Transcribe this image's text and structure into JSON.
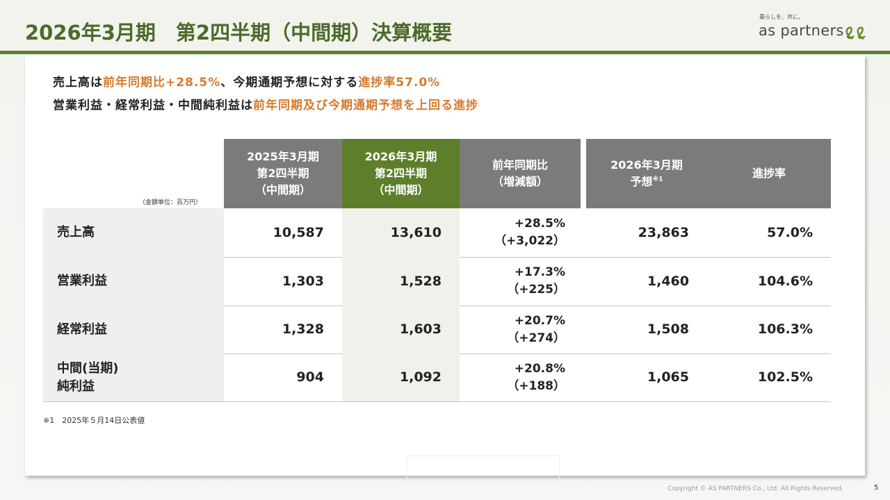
{
  "header": {
    "title": "2026年3月期　第2四半期（中間期）決算概要",
    "tagline": "暮らしを、共に。",
    "logo": "as partners"
  },
  "summary": [
    [
      {
        "text": "売上高は",
        "highlight": false
      },
      {
        "text": "前年同期比+28.5%",
        "highlight": true
      },
      {
        "text": "、今期通期予想に対する",
        "highlight": false
      },
      {
        "text": "進捗率57.0%",
        "highlight": true
      }
    ],
    [
      {
        "text": "営業利益・経常利益・中間純利益は",
        "highlight": false
      },
      {
        "text": "前年同期及び今期通期予想を上回る進捗",
        "highlight": true
      }
    ]
  ],
  "table": {
    "unit": "（金額単位：百万円）",
    "columns": [
      {
        "lines": [
          "2025年3月期",
          "第2四半期",
          "（中間期）"
        ]
      },
      {
        "lines": [
          "2026年3月期",
          "第2四半期",
          "（中間期）"
        ]
      },
      {
        "lines": [
          "前年同期比",
          "（増減額）"
        ]
      },
      {
        "lines": [
          "2026年3月期",
          "予想"
        ],
        "note": "※1"
      },
      {
        "lines": [
          "進捗率"
        ]
      }
    ],
    "rows": [
      {
        "label": [
          "売上高"
        ],
        "cells": [
          "10,587",
          "13,610",
          [
            "+28.5%",
            "（+3,022）"
          ],
          "23,863",
          "57.0%"
        ]
      },
      {
        "label": [
          "営業利益"
        ],
        "cells": [
          "1,303",
          "1,528",
          [
            "+17.3%",
            "（+225）"
          ],
          "1,460",
          "104.6%"
        ]
      },
      {
        "label": [
          "経常利益"
        ],
        "cells": [
          "1,328",
          "1,603",
          [
            "+20.7%",
            "（+274）"
          ],
          "1,508",
          "106.3%"
        ]
      },
      {
        "label": [
          "中間(当期)",
          "純利益"
        ],
        "cells": [
          "904",
          "1,092",
          [
            "+20.8%",
            "（+188）"
          ],
          "1,065",
          "102.5%"
        ]
      }
    ]
  },
  "footnote": "※1　2025年５月14日公表値",
  "copyright": "Copyright © AS PARTNERS Co., Ltd. All Rights Reserved.",
  "page": "5"
}
